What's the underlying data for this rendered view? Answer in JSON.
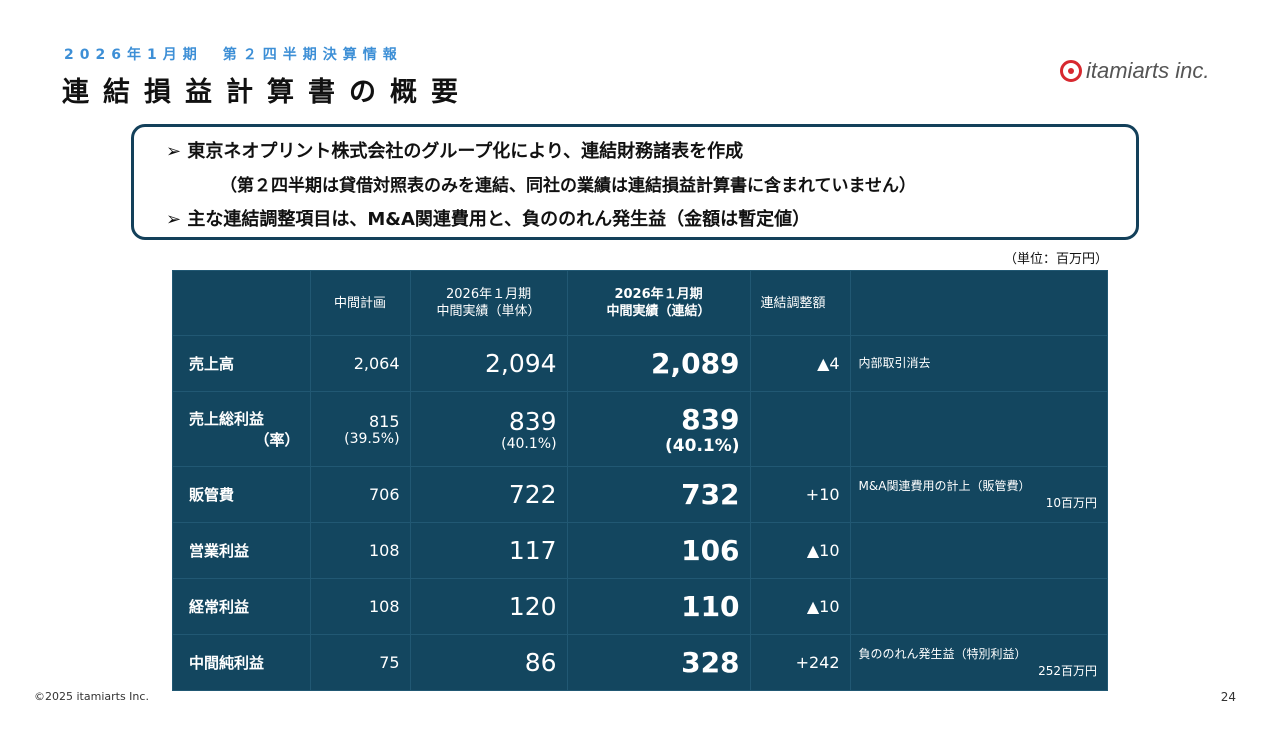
{
  "header": {
    "subtitle": "2026年1月期　第２四半期決算情報",
    "title": "連結損益計算書の概要",
    "logo": "itamiarts inc."
  },
  "callout": {
    "line1": "➢ 東京ネオプリント株式会社のグループ化により、連結財務諸表を作成",
    "line2": "（第２四半期は貸借対照表のみを連結、同社の業績は連結損益計算書に含まれていません）",
    "line3": "➢ 主な連結調整項目は、M&A関連費用と、負ののれん発生益（金額は暫定値）"
  },
  "unit": "（単位：百万円）",
  "table": {
    "headers": [
      "中間計画",
      "2026年１月期\n中間実績（単体）",
      "2026年１月期\n中間実績（連結）",
      "連結調整額"
    ],
    "rows": [
      {
        "label": "売上高",
        "plan": "2,064",
        "single": "2,094",
        "consol": "2,089",
        "adj": "▲4",
        "note": "内部取引消去",
        "note2": ""
      },
      {
        "label": "売上総利益",
        "label2": "（率）",
        "plan": "815",
        "plan2": "(39.5%)",
        "single": "839",
        "single2": "(40.1%)",
        "consol": "839",
        "consol2": "(40.1%)",
        "adj": "",
        "note": "",
        "note2": ""
      },
      {
        "label": "販管費",
        "plan": "706",
        "single": "722",
        "consol": "732",
        "adj": "+10",
        "note": "M&A関連費用の計上（販管費）",
        "note2": "10百万円"
      },
      {
        "label": "営業利益",
        "plan": "108",
        "single": "117",
        "consol": "106",
        "adj": "▲10",
        "note": "",
        "note2": ""
      },
      {
        "label": "経常利益",
        "plan": "108",
        "single": "120",
        "consol": "110",
        "adj": "▲10",
        "note": "",
        "note2": ""
      },
      {
        "label": "中間純利益",
        "plan": "75",
        "single": "86",
        "consol": "328",
        "adj": "+242",
        "note": "負ののれん発生益（特別利益）",
        "note2": "252百万円"
      }
    ]
  },
  "footer": {
    "copyright": "©2025 itamiarts Inc.",
    "page": "24"
  }
}
